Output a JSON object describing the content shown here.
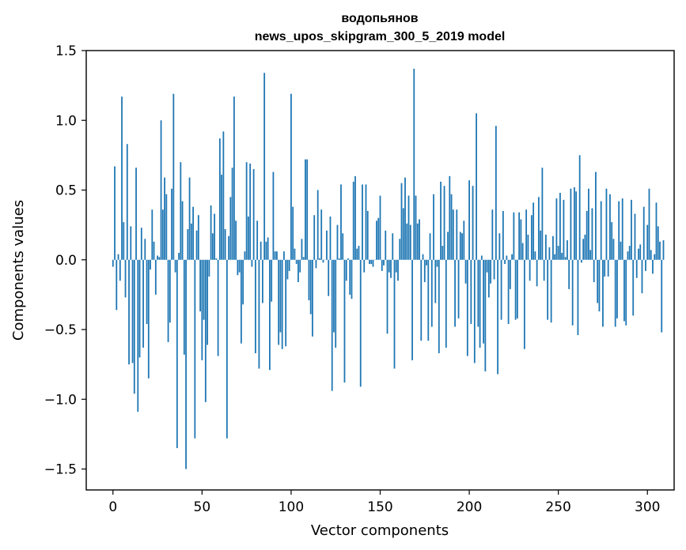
{
  "chart_data": {
    "type": "bar",
    "title": "водопьянов",
    "subtitle": "news_upos_skipgram_300_5_2019 model",
    "xlabel": "Vector components",
    "ylabel": "Components values",
    "xlim": [
      -15,
      315
    ],
    "ylim": [
      -1.65,
      1.5
    ],
    "xticks": [
      0,
      50,
      100,
      150,
      200,
      250,
      300
    ],
    "yticks": [
      -1.5,
      -1.0,
      -0.5,
      0.0,
      0.5,
      1.0,
      1.5
    ],
    "xtick_labels": [
      "0",
      "50",
      "100",
      "150",
      "200",
      "250",
      "300"
    ],
    "ytick_labels": [
      "−1.5",
      "−1.0",
      "−0.5",
      "0.0",
      "0.5",
      "1.0",
      "1.5"
    ],
    "bar_color": "#1f77b4",
    "grid": false,
    "values": [
      -0.05,
      0.67,
      -0.36,
      0.04,
      -0.15,
      1.17,
      0.27,
      -0.27,
      0.83,
      -0.75,
      0.24,
      -0.74,
      -0.96,
      0.66,
      -1.09,
      -0.7,
      0.23,
      -0.63,
      0.15,
      -0.46,
      -0.85,
      -0.07,
      0.36,
      0.13,
      -0.25,
      0.03,
      0.02,
      1.0,
      0.36,
      0.59,
      0.47,
      -0.59,
      -0.45,
      0.51,
      1.19,
      -0.09,
      -1.35,
      0.05,
      0.7,
      0.42,
      -0.68,
      -1.5,
      0.22,
      0.59,
      0.26,
      0.38,
      -1.28,
      0.21,
      0.32,
      -0.37,
      -0.72,
      -0.43,
      -1.02,
      -0.61,
      -0.12,
      0.39,
      0.19,
      0.33,
      0.01,
      -0.69,
      0.87,
      0.61,
      0.92,
      0.22,
      -1.28,
      0.17,
      0.45,
      0.66,
      1.17,
      0.28,
      -0.11,
      -0.09,
      -0.6,
      -0.32,
      0.06,
      0.7,
      0.31,
      0.69,
      -0.05,
      0.65,
      -0.67,
      0.28,
      -0.78,
      0.13,
      -0.31,
      1.34,
      0.13,
      0.16,
      -0.79,
      -0.3,
      0.63,
      0.06,
      0.06,
      -0.61,
      -0.52,
      -0.64,
      0.06,
      -0.62,
      -0.14,
      -0.08,
      1.19,
      0.38,
      0.08,
      -0.03,
      -0.16,
      -0.09,
      0.15,
      0.02,
      0.72,
      0.72,
      -0.29,
      -0.39,
      -0.55,
      0.32,
      -0.06,
      0.5,
      0.01,
      0.36,
      -0.02,
      0.0,
      0.21,
      -0.26,
      0.31,
      -0.94,
      -0.52,
      -0.63,
      0.25,
      0.01,
      0.54,
      0.19,
      -0.88,
      -0.15,
      0.01,
      -0.25,
      -0.28,
      0.56,
      0.6,
      0.08,
      0.1,
      -0.91,
      0.54,
      -0.09,
      0.54,
      0.35,
      -0.03,
      -0.03,
      -0.05,
      0.0,
      0.28,
      0.3,
      0.46,
      -0.08,
      -0.04,
      0.21,
      -0.53,
      -0.09,
      -0.13,
      0.19,
      -0.78,
      -0.09,
      -0.15,
      0.15,
      0.55,
      0.37,
      0.59,
      0.26,
      0.46,
      0.25,
      -0.72,
      1.37,
      0.46,
      0.26,
      0.29,
      -0.58,
      0.04,
      -0.16,
      -0.04,
      -0.58,
      0.19,
      -0.48,
      0.47,
      -0.31,
      -0.05,
      -0.67,
      0.56,
      0.1,
      0.53,
      -0.63,
      0.2,
      0.6,
      0.47,
      0.36,
      -0.48,
      0.36,
      -0.42,
      0.2,
      0.19,
      0.28,
      -0.17,
      -0.69,
      0.57,
      -0.46,
      0.53,
      -0.74,
      1.05,
      -0.48,
      -0.63,
      0.03,
      -0.6,
      -0.8,
      -0.09,
      -0.27,
      -0.17,
      0.36,
      -0.14,
      0.96,
      -0.82,
      0.19,
      -0.43,
      0.35,
      -0.03,
      0.03,
      -0.46,
      -0.21,
      0.04,
      0.34,
      -0.43,
      -0.42,
      0.34,
      0.29,
      0.12,
      -0.64,
      0.36,
      0.18,
      -0.15,
      0.32,
      0.41,
      0.06,
      -0.19,
      0.45,
      0.21,
      0.66,
      -0.15,
      0.18,
      -0.43,
      0.09,
      -0.45,
      0.17,
      0.04,
      0.44,
      0.1,
      0.48,
      0.05,
      0.43,
      0.02,
      0.14,
      -0.21,
      0.51,
      -0.47,
      0.52,
      0.49,
      -0.54,
      0.75,
      -0.02,
      0.15,
      0.18,
      0.35,
      0.51,
      0.07,
      0.37,
      -0.16,
      0.63,
      -0.31,
      -0.37,
      0.42,
      -0.48,
      -0.12,
      0.51,
      -0.12,
      0.47,
      0.27,
      0.15,
      -0.48,
      -0.42,
      0.42,
      0.13,
      0.44,
      -0.44,
      -0.47,
      0.06,
      0.1,
      0.43,
      -0.4,
      0.33,
      -0.13,
      0.08,
      0.11,
      -0.24,
      0.38,
      -0.08,
      0.25,
      0.51,
      0.07,
      -0.1,
      0.04,
      0.41,
      0.24,
      0.13,
      -0.52,
      0.14
    ]
  }
}
